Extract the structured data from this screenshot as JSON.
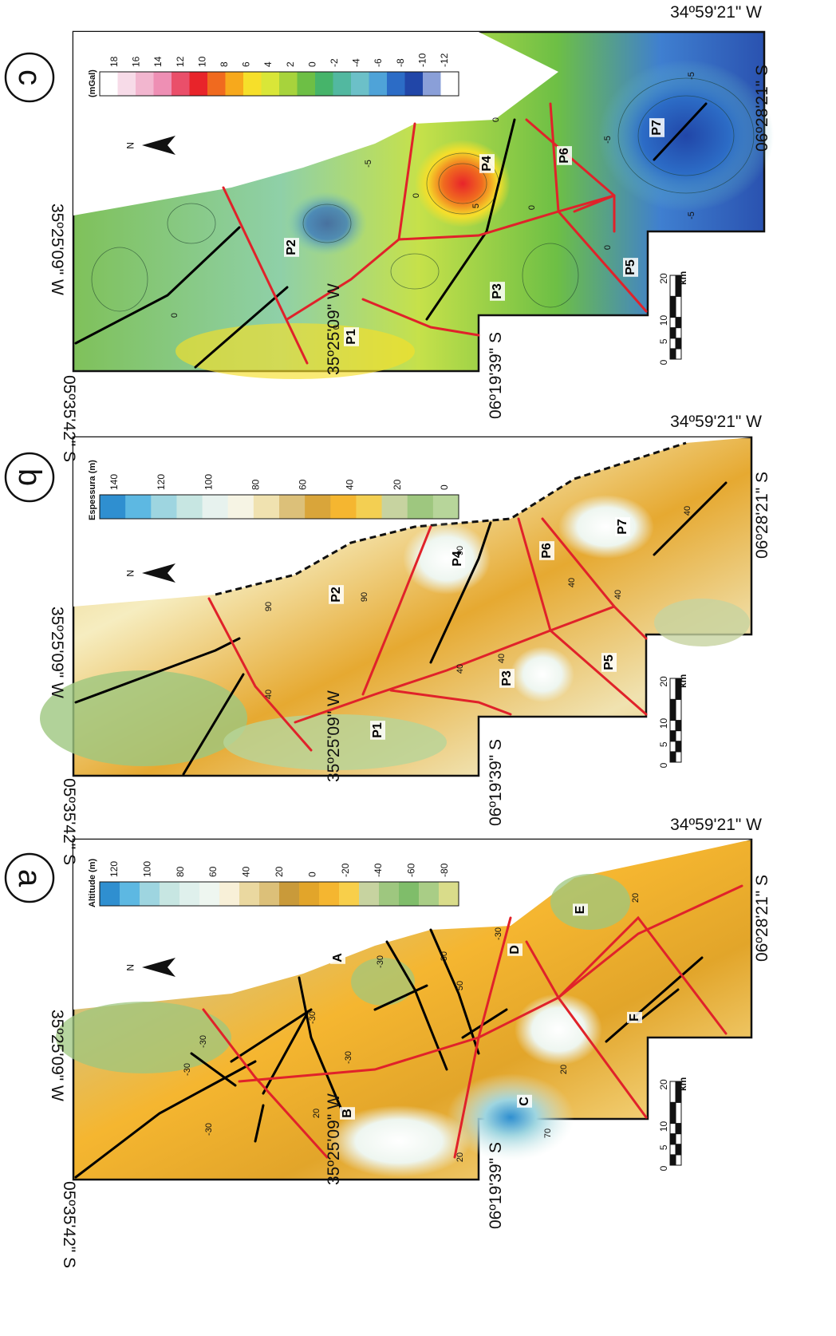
{
  "coords": {
    "top_right_w": "34º59'21\" W",
    "side_s_top": "05º35'42\" S",
    "side_w_1": "35º25'09\" W",
    "side_w_2": "35º25'09\" W",
    "side_s_bottom": "06º19'39\" S",
    "side_s_right": "06º28'21\" S"
  },
  "north_label": "N",
  "scale": {
    "ticks": [
      "0",
      "5",
      "10",
      "20"
    ],
    "unit": "km"
  },
  "panels": [
    {
      "letter": "a",
      "legend": {
        "title": "Altitude (m)",
        "ticks": [
          "120",
          "100",
          "80",
          "60",
          "40",
          "20",
          "0",
          "-20",
          "-40",
          "-60",
          "-80"
        ],
        "colors": [
          "#2f8fd0",
          "#5db8e2",
          "#9ed5e0",
          "#c7e6e2",
          "#dff0ec",
          "#eef6f0",
          "#f8f0d8",
          "#ead8a0",
          "#dcc079",
          "#c99a3a",
          "#e2a52a",
          "#f5b630",
          "#f8cf4a",
          "#c7d3a0",
          "#9ec77f",
          "#7fbd6a",
          "#a9cd86",
          "#d9dc8a"
        ]
      },
      "labels": [
        "A",
        "B",
        "C",
        "D",
        "E",
        "F"
      ],
      "contours": [
        "-30",
        "-30",
        "-30",
        "20",
        "-30",
        "-30",
        "-30",
        "50",
        "-30",
        "20",
        "70",
        "20",
        "20",
        "-30"
      ]
    },
    {
      "letter": "b",
      "legend": {
        "title": "Espessura (m)",
        "ticks": [
          "140",
          "120",
          "100",
          "80",
          "60",
          "40",
          "20",
          "0"
        ],
        "colors": [
          "#2f8fd0",
          "#5db8e2",
          "#9ed5e0",
          "#c7e6e2",
          "#e7f2ee",
          "#f6f4e4",
          "#f0e2b0",
          "#dcc079",
          "#d9a53a",
          "#f5b630",
          "#f3cf52",
          "#c7d3a0",
          "#9ec77f",
          "#b7d59a"
        ]
      },
      "labels": [
        "P1",
        "P2",
        "P3",
        "P4",
        "P5",
        "P6",
        "P7"
      ],
      "contours": [
        "90",
        "90",
        "90",
        "40",
        "40",
        "40",
        "40",
        "40",
        "40"
      ]
    },
    {
      "letter": "c",
      "legend": {
        "title": "(mGal)",
        "ticks": [
          "18",
          "16",
          "14",
          "12",
          "10",
          "8",
          "6",
          "4",
          "2",
          "0",
          "-2",
          "-4",
          "-6",
          "-8",
          "-10",
          "-12"
        ],
        "colors": [
          "#ffffff",
          "#f7dbe8",
          "#f2b6cf",
          "#ee8fb4",
          "#ea4f6a",
          "#e8242a",
          "#f06a1f",
          "#f7a91c",
          "#f6df2a",
          "#d9e638",
          "#a7d33c",
          "#6dbf45",
          "#46b46a",
          "#52b8a0",
          "#6cc0c8",
          "#4fa3d8",
          "#2c6cc6",
          "#2146a8",
          "#8a9fd8",
          "#ffffff"
        ]
      },
      "labels": [
        "P1",
        "P2",
        "P3",
        "P4",
        "P5",
        "P6",
        "P7"
      ],
      "contours": [
        "0",
        "0",
        "0",
        "-5",
        "0",
        "5",
        "0",
        "0",
        "-5",
        "-5",
        "-5"
      ]
    }
  ]
}
